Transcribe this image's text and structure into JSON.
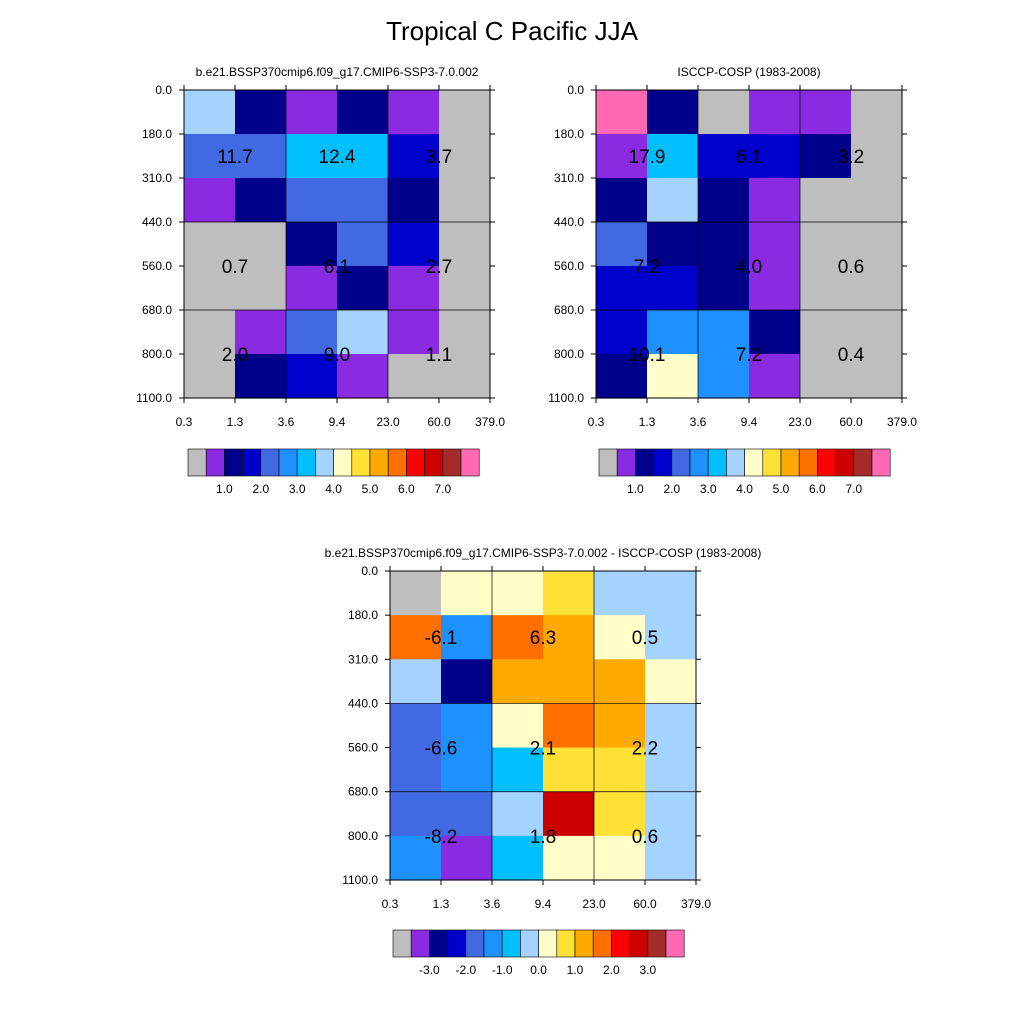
{
  "title": "Tropical C Pacific JJA",
  "x_ticks": [
    "0.3",
    "1.3",
    "3.6",
    "9.4",
    "23.0",
    "60.0",
    "379.0"
  ],
  "y_ticks": [
    "0.0",
    "180.0",
    "310.0",
    "440.0",
    "560.0",
    "680.0",
    "800.0",
    "1100.0"
  ],
  "colorbar_abs": {
    "colors": [
      "#bebebe",
      "#8a2be2",
      "#00008b",
      "#0000cd",
      "#4169e1",
      "#1e90ff",
      "#00bfff",
      "#a4d3ff",
      "#ffffc8",
      "#ffe135",
      "#ffaa00",
      "#ff7000",
      "#ff0000",
      "#cd0000",
      "#a52a2a",
      "#ff69b4"
    ],
    "labels": [
      "1.0",
      "2.0",
      "3.0",
      "4.0",
      "5.0",
      "6.0",
      "7.0"
    ]
  },
  "colorbar_diff": {
    "colors": [
      "#bebebe",
      "#8a2be2",
      "#00008b",
      "#0000cd",
      "#4169e1",
      "#1e90ff",
      "#00bfff",
      "#a4d3ff",
      "#ffffc8",
      "#ffe135",
      "#ffaa00",
      "#ff7000",
      "#ff0000",
      "#cd0000",
      "#a52a2a",
      "#ff69b4"
    ],
    "labels": [
      "-3.0",
      "-2.0",
      "-1.0",
      "0.0",
      "1.0",
      "2.0",
      "3.0"
    ]
  },
  "chart_data": [
    {
      "type": "heatmap",
      "title": "b.e21.BSSP370cmip6.f09_g17.CMIP6-SSP3-7.0.002",
      "x_bins": [
        "0.3",
        "1.3",
        "3.6",
        "9.4",
        "23.0",
        "60.0",
        "379.0"
      ],
      "y_bins": [
        "0.0",
        "180.0",
        "310.0",
        "440.0",
        "560.0",
        "680.0",
        "800.0",
        "1100.0"
      ],
      "cells": [
        [
          "#a4d3ff",
          "#00008b",
          "#8a2be2",
          "#00008b",
          "#8a2be2",
          "#bebebe"
        ],
        [
          "#4169e1",
          "#4169e1",
          "#00bfff",
          "#00bfff",
          "#0000cd",
          "#bebebe"
        ],
        [
          "#8a2be2",
          "#00008b",
          "#4169e1",
          "#4169e1",
          "#00008b",
          "#bebebe"
        ],
        [
          "#bebebe",
          "#bebebe",
          "#00008b",
          "#4169e1",
          "#0000cd",
          "#bebebe"
        ],
        [
          "#bebebe",
          "#bebebe",
          "#8a2be2",
          "#00008b",
          "#8a2be2",
          "#bebebe"
        ],
        [
          "#bebebe",
          "#8a2be2",
          "#4169e1",
          "#a4d3ff",
          "#8a2be2",
          "#bebebe"
        ],
        [
          "#bebebe",
          "#00008b",
          "#0000cd",
          "#8a2be2",
          "#bebebe",
          "#bebebe"
        ]
      ],
      "annotations": [
        {
          "row": 0,
          "col": 0,
          "text": "11.7"
        },
        {
          "row": 0,
          "col": 1,
          "text": "12.4"
        },
        {
          "row": 0,
          "col": 2,
          "text": "3.7"
        },
        {
          "row": 1,
          "col": 0,
          "text": "0.7"
        },
        {
          "row": 1,
          "col": 1,
          "text": "6.1"
        },
        {
          "row": 1,
          "col": 2,
          "text": "2.7"
        },
        {
          "row": 2,
          "col": 0,
          "text": "2.0"
        },
        {
          "row": 2,
          "col": 1,
          "text": "9.0"
        },
        {
          "row": 2,
          "col": 2,
          "text": "1.1"
        }
      ],
      "colorbar": "abs"
    },
    {
      "type": "heatmap",
      "title": "ISCCP-COSP (1983-2008)",
      "x_bins": [
        "0.3",
        "1.3",
        "3.6",
        "9.4",
        "23.0",
        "60.0",
        "379.0"
      ],
      "y_bins": [
        "0.0",
        "180.0",
        "310.0",
        "440.0",
        "560.0",
        "680.0",
        "800.0",
        "1100.0"
      ],
      "cells": [
        [
          "#ff69b4",
          "#00008b",
          "#bebebe",
          "#8a2be2",
          "#8a2be2",
          "#bebebe"
        ],
        [
          "#8a2be2",
          "#00bfff",
          "#0000cd",
          "#0000cd",
          "#00008b",
          "#bebebe"
        ],
        [
          "#00008b",
          "#a4d3ff",
          "#00008b",
          "#8a2be2",
          "#bebebe",
          "#bebebe"
        ],
        [
          "#4169e1",
          "#00008b",
          "#00008b",
          "#8a2be2",
          "#bebebe",
          "#bebebe"
        ],
        [
          "#0000cd",
          "#0000cd",
          "#00008b",
          "#8a2be2",
          "#bebebe",
          "#bebebe"
        ],
        [
          "#0000cd",
          "#1e90ff",
          "#1e90ff",
          "#00008b",
          "#bebebe",
          "#bebebe"
        ],
        [
          "#00008b",
          "#ffffc8",
          "#1e90ff",
          "#8a2be2",
          "#bebebe",
          "#bebebe"
        ]
      ],
      "annotations": [
        {
          "row": 0,
          "col": 0,
          "text": "17.9"
        },
        {
          "row": 0,
          "col": 1,
          "text": "6.1"
        },
        {
          "row": 0,
          "col": 2,
          "text": "3.2"
        },
        {
          "row": 1,
          "col": 0,
          "text": "7.2"
        },
        {
          "row": 1,
          "col": 1,
          "text": "4.0"
        },
        {
          "row": 1,
          "col": 2,
          "text": "0.6"
        },
        {
          "row": 2,
          "col": 0,
          "text": "10.1"
        },
        {
          "row": 2,
          "col": 1,
          "text": "7.2"
        },
        {
          "row": 2,
          "col": 2,
          "text": "0.4"
        }
      ],
      "colorbar": "abs"
    },
    {
      "type": "heatmap",
      "title": "b.e21.BSSP370cmip6.f09_g17.CMIP6-SSP3-7.0.002 - ISCCP-COSP (1983-2008)",
      "x_bins": [
        "0.3",
        "1.3",
        "3.6",
        "9.4",
        "23.0",
        "60.0",
        "379.0"
      ],
      "y_bins": [
        "0.0",
        "180.0",
        "310.0",
        "440.0",
        "560.0",
        "680.0",
        "800.0",
        "1100.0"
      ],
      "cells": [
        [
          "#bebebe",
          "#ffffc8",
          "#ffffc8",
          "#ffe135",
          "#a4d3ff",
          "#a4d3ff"
        ],
        [
          "#ff7000",
          "#1e90ff",
          "#ff7000",
          "#ffaa00",
          "#ffffc8",
          "#a4d3ff"
        ],
        [
          "#a4d3ff",
          "#00008b",
          "#ffaa00",
          "#ffaa00",
          "#ffaa00",
          "#ffffc8"
        ],
        [
          "#4169e1",
          "#1e90ff",
          "#ffffc8",
          "#ff7000",
          "#ffaa00",
          "#a4d3ff"
        ],
        [
          "#4169e1",
          "#1e90ff",
          "#00bfff",
          "#ffe135",
          "#ffe135",
          "#a4d3ff"
        ],
        [
          "#4169e1",
          "#4169e1",
          "#a4d3ff",
          "#cd0000",
          "#ffe135",
          "#a4d3ff"
        ],
        [
          "#1e90ff",
          "#8a2be2",
          "#00bfff",
          "#ffffc8",
          "#ffffc8",
          "#a4d3ff"
        ]
      ],
      "annotations": [
        {
          "row": 0,
          "col": 0,
          "text": "-6.1"
        },
        {
          "row": 0,
          "col": 1,
          "text": "6.3"
        },
        {
          "row": 0,
          "col": 2,
          "text": "0.5"
        },
        {
          "row": 1,
          "col": 0,
          "text": "-6.6"
        },
        {
          "row": 1,
          "col": 1,
          "text": "2.1"
        },
        {
          "row": 1,
          "col": 2,
          "text": "2.2"
        },
        {
          "row": 2,
          "col": 0,
          "text": "-8.2"
        },
        {
          "row": 2,
          "col": 1,
          "text": "1.8"
        },
        {
          "row": 2,
          "col": 2,
          "text": "0.6"
        }
      ],
      "colorbar": "diff"
    }
  ]
}
